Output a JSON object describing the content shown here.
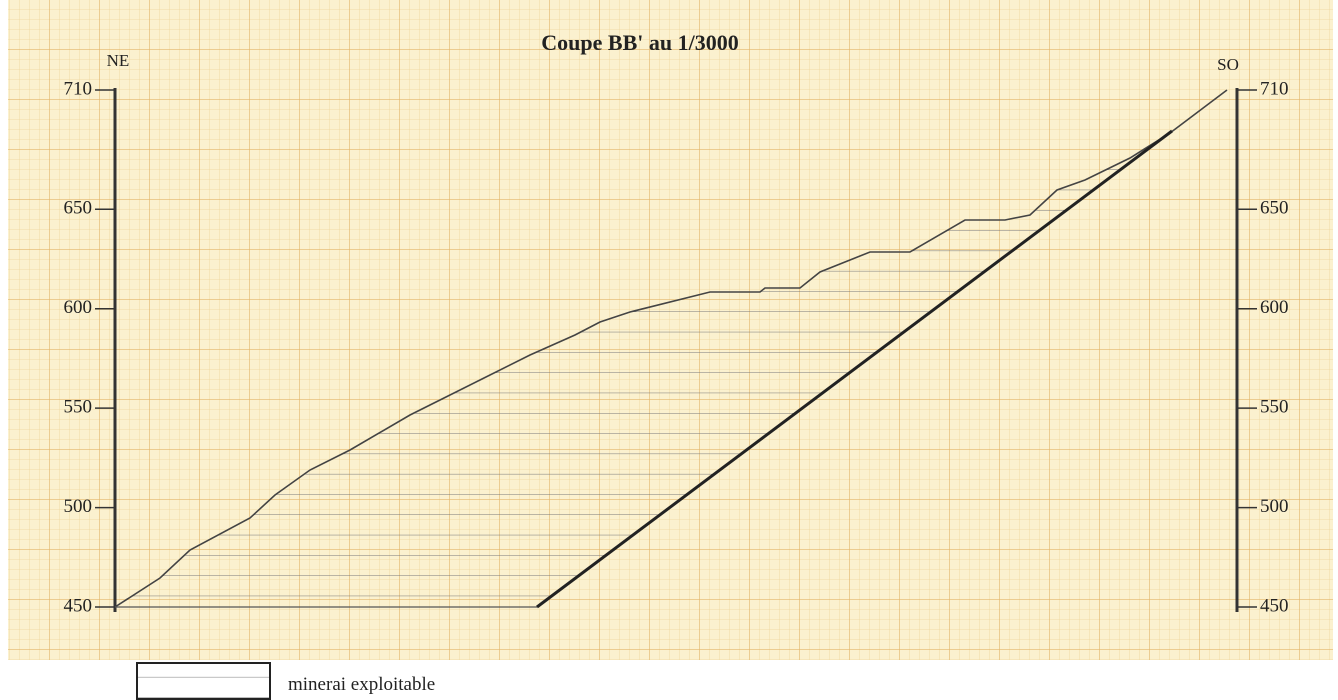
{
  "title": "Coupe BB' au 1/3000",
  "labels": {
    "left": "NE",
    "right": "SO"
  },
  "axis": {
    "left_ticks": [
      710,
      650,
      600,
      550,
      500,
      450
    ],
    "right_ticks": [
      710,
      650,
      600,
      550,
      500,
      450
    ]
  },
  "legend": {
    "label": "minerai exploitable"
  }
}
